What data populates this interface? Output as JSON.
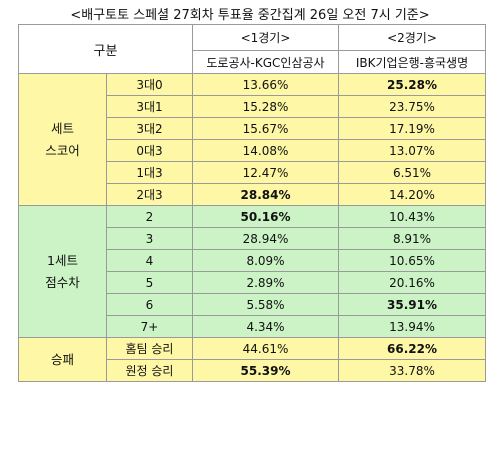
{
  "title": "<배구토토 스페셜 27회차 투표율 중간집계 26일 오전 7시 기준>",
  "header": {
    "category": "구분",
    "game1_label": "<1경기>",
    "game1_teams": "도로공사-KGC인삼공사",
    "game2_label": "<2경기>",
    "game2_teams": "IBK기업은행-흥국생명"
  },
  "groups": [
    {
      "label_line1": "세트",
      "label_line2": "스코어",
      "rows": [
        {
          "option": "3대0",
          "g1": "13.66%",
          "g2": "25.28%"
        },
        {
          "option": "3대1",
          "g1": "15.28%",
          "g2": "23.75%"
        },
        {
          "option": "3대2",
          "g1": "15.67%",
          "g2": "17.19%"
        },
        {
          "option": "0대3",
          "g1": "14.08%",
          "g2": "13.07%"
        },
        {
          "option": "1대3",
          "g1": "12.47%",
          "g2": "6.51%"
        },
        {
          "option": "2대3",
          "g1": "28.84%",
          "g2": "14.20%"
        }
      ]
    },
    {
      "label_line1": "1세트",
      "label_line2": "점수차",
      "rows": [
        {
          "option": "2",
          "g1": "50.16%",
          "g2": "10.43%"
        },
        {
          "option": "3",
          "g1": "28.94%",
          "g2": "8.91%"
        },
        {
          "option": "4",
          "g1": "8.09%",
          "g2": "10.65%"
        },
        {
          "option": "5",
          "g1": "2.89%",
          "g2": "20.16%"
        },
        {
          "option": "6",
          "g1": "5.58%",
          "g2": "35.91%"
        },
        {
          "option": "7+",
          "g1": "4.34%",
          "g2": "13.94%"
        }
      ]
    },
    {
      "label_line1": "승패",
      "label_line2": "",
      "rows": [
        {
          "option": "홈팀 승리",
          "g1": "44.61%",
          "g2": "66.22%"
        },
        {
          "option": "원정 승리",
          "g1": "55.39%",
          "g2": "33.78%"
        }
      ]
    }
  ]
}
